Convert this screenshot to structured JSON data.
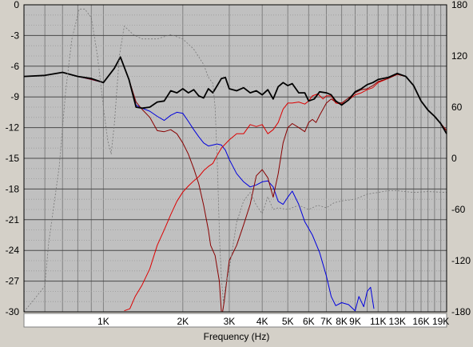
{
  "chart_data": {
    "type": "line",
    "xlabel": "Frequency (Hz)",
    "x_scale": "log",
    "xlim": [
      500,
      20000
    ],
    "ylim": [
      -30,
      0
    ],
    "y2lim": [
      -180,
      180
    ],
    "grid": true,
    "x_tick_labels": [
      {
        "x": 1000,
        "label": "1K"
      },
      {
        "x": 2000,
        "label": "2K"
      },
      {
        "x": 3000,
        "label": "3K"
      },
      {
        "x": 4000,
        "label": "4K"
      },
      {
        "x": 5000,
        "label": "5K"
      },
      {
        "x": 6000,
        "label": "6K"
      },
      {
        "x": 7000,
        "label": "7K"
      },
      {
        "x": 8000,
        "label": "8K"
      },
      {
        "x": 9000,
        "label": "9K"
      },
      {
        "x": 11000,
        "label": "11K"
      },
      {
        "x": 13000,
        "label": "13K"
      },
      {
        "x": 16000,
        "label": "16K"
      },
      {
        "x": 19000,
        "label": "19K"
      }
    ],
    "y_ticks": [
      0,
      -3,
      -6,
      -9,
      -12,
      -15,
      -18,
      -21,
      -24,
      -27,
      -30
    ],
    "y2_ticks": [
      180,
      120,
      60,
      0,
      -60,
      -120,
      -180
    ],
    "series": [
      {
        "color": "#0000dd",
        "width": 1,
        "axis": "left",
        "points": [
          [
            500,
            -7.0
          ],
          [
            600,
            -6.9
          ],
          [
            700,
            -6.6
          ],
          [
            800,
            -7.0
          ],
          [
            900,
            -7.3
          ],
          [
            1000,
            -7.6
          ],
          [
            1100,
            -6.2
          ],
          [
            1160,
            -5.1
          ],
          [
            1250,
            -7.3
          ],
          [
            1330,
            -9.8
          ],
          [
            1400,
            -10.1
          ],
          [
            1500,
            -10.4
          ],
          [
            1600,
            -10.9
          ],
          [
            1700,
            -11.3
          ],
          [
            1800,
            -10.8
          ],
          [
            1900,
            -10.5
          ],
          [
            2000,
            -10.6
          ],
          [
            2100,
            -11.4
          ],
          [
            2200,
            -12.2
          ],
          [
            2300,
            -12.9
          ],
          [
            2400,
            -13.5
          ],
          [
            2500,
            -13.8
          ],
          [
            2600,
            -13.7
          ],
          [
            2700,
            -13.6
          ],
          [
            2800,
            -13.7
          ],
          [
            2900,
            -14.2
          ],
          [
            3000,
            -15.1
          ],
          [
            3200,
            -16.5
          ],
          [
            3400,
            -17.3
          ],
          [
            3600,
            -17.8
          ],
          [
            3800,
            -17.6
          ],
          [
            4000,
            -17.3
          ],
          [
            4200,
            -17.2
          ],
          [
            4400,
            -17.8
          ],
          [
            4600,
            -19.2
          ],
          [
            4800,
            -19.5
          ],
          [
            5000,
            -18.8
          ],
          [
            5200,
            -18.2
          ],
          [
            5500,
            -19.5
          ],
          [
            5800,
            -21.2
          ],
          [
            6200,
            -22.5
          ],
          [
            6600,
            -24.2
          ],
          [
            7000,
            -26.5
          ],
          [
            7300,
            -28.5
          ],
          [
            7600,
            -29.4
          ],
          [
            8000,
            -29.1
          ],
          [
            8500,
            -29.3
          ],
          [
            9000,
            -29.9
          ],
          [
            9300,
            -28.5
          ],
          [
            9700,
            -29.5
          ],
          [
            10000,
            -28.0
          ],
          [
            10300,
            -27.6
          ],
          [
            10600,
            -29.7
          ]
        ]
      },
      {
        "color": "#dd0000",
        "width": 1,
        "axis": "left",
        "points": [
          [
            1200,
            -29.9
          ],
          [
            1260,
            -29.7
          ],
          [
            1320,
            -28.5
          ],
          [
            1400,
            -27.4
          ],
          [
            1500,
            -25.8
          ],
          [
            1600,
            -23.5
          ],
          [
            1700,
            -22.0
          ],
          [
            1800,
            -20.5
          ],
          [
            1900,
            -19.2
          ],
          [
            2000,
            -18.3
          ],
          [
            2100,
            -17.7
          ],
          [
            2200,
            -17.2
          ],
          [
            2300,
            -16.8
          ],
          [
            2400,
            -16.2
          ],
          [
            2500,
            -15.8
          ],
          [
            2600,
            -15.5
          ],
          [
            2700,
            -14.7
          ],
          [
            2800,
            -14.0
          ],
          [
            3000,
            -13.2
          ],
          [
            3200,
            -12.6
          ],
          [
            3400,
            -12.6
          ],
          [
            3600,
            -11.7
          ],
          [
            3800,
            -11.9
          ],
          [
            4000,
            -11.7
          ],
          [
            4200,
            -12.6
          ],
          [
            4400,
            -12.2
          ],
          [
            4600,
            -11.5
          ],
          [
            4800,
            -10.2
          ],
          [
            5000,
            -9.6
          ],
          [
            5200,
            -9.6
          ],
          [
            5500,
            -9.5
          ],
          [
            5800,
            -9.7
          ],
          [
            6000,
            -9.4
          ],
          [
            6200,
            -8.9
          ],
          [
            6500,
            -8.7
          ],
          [
            6800,
            -9.2
          ],
          [
            7000,
            -8.9
          ],
          [
            7300,
            -8.9
          ],
          [
            7600,
            -9.6
          ],
          [
            8000,
            -9.7
          ],
          [
            8500,
            -9.3
          ],
          [
            9000,
            -8.8
          ],
          [
            9500,
            -8.6
          ],
          [
            10000,
            -8.3
          ],
          [
            10500,
            -8.1
          ],
          [
            11000,
            -7.6
          ],
          [
            12000,
            -7.2
          ],
          [
            13000,
            -6.8
          ],
          [
            14000,
            -7.0
          ],
          [
            15000,
            -7.9
          ],
          [
            16000,
            -9.4
          ],
          [
            17000,
            -10.3
          ],
          [
            18000,
            -10.9
          ],
          [
            19000,
            -11.6
          ],
          [
            20000,
            -12.3
          ]
        ]
      },
      {
        "color": "#880000",
        "width": 1,
        "axis": "left",
        "points": [
          [
            500,
            -7.0
          ],
          [
            600,
            -6.9
          ],
          [
            700,
            -6.6
          ],
          [
            800,
            -7.0
          ],
          [
            900,
            -7.3
          ],
          [
            1000,
            -7.6
          ],
          [
            1100,
            -6.2
          ],
          [
            1160,
            -5.1
          ],
          [
            1250,
            -7.3
          ],
          [
            1330,
            -9.5
          ],
          [
            1400,
            -10.2
          ],
          [
            1500,
            -11.0
          ],
          [
            1600,
            -12.3
          ],
          [
            1700,
            -12.4
          ],
          [
            1800,
            -12.2
          ],
          [
            1900,
            -12.6
          ],
          [
            2000,
            -13.5
          ],
          [
            2100,
            -14.6
          ],
          [
            2200,
            -16.0
          ],
          [
            2300,
            -17.5
          ],
          [
            2400,
            -19.6
          ],
          [
            2500,
            -22.0
          ],
          [
            2550,
            -23.5
          ],
          [
            2650,
            -24.5
          ],
          [
            2750,
            -27.0
          ],
          [
            2800,
            -30.0
          ],
          [
            2830,
            -30.0
          ],
          [
            2870,
            -29.0
          ],
          [
            2950,
            -26.5
          ],
          [
            3000,
            -25.0
          ],
          [
            3200,
            -23.5
          ],
          [
            3400,
            -21.5
          ],
          [
            3600,
            -19.5
          ],
          [
            3800,
            -16.7
          ],
          [
            4000,
            -16.1
          ],
          [
            4200,
            -16.9
          ],
          [
            4400,
            -18.8
          ],
          [
            4600,
            -16.5
          ],
          [
            4800,
            -13.5
          ],
          [
            5000,
            -12.0
          ],
          [
            5200,
            -11.6
          ],
          [
            5500,
            -12.0
          ],
          [
            5800,
            -12.4
          ],
          [
            6000,
            -11.5
          ],
          [
            6200,
            -11.2
          ],
          [
            6400,
            -11.5
          ],
          [
            6600,
            -10.8
          ],
          [
            7000,
            -9.6
          ],
          [
            7300,
            -9.2
          ],
          [
            7600,
            -9.5
          ],
          [
            8000,
            -9.6
          ],
          [
            8500,
            -9.1
          ],
          [
            9000,
            -8.6
          ],
          [
            9500,
            -8.3
          ],
          [
            10000,
            -8.2
          ],
          [
            10500,
            -7.9
          ],
          [
            11000,
            -7.5
          ],
          [
            12000,
            -7.2
          ],
          [
            13000,
            -6.8
          ],
          [
            14000,
            -7.0
          ],
          [
            15000,
            -7.9
          ],
          [
            16000,
            -9.4
          ],
          [
            17000,
            -10.3
          ],
          [
            18000,
            -10.9
          ],
          [
            19000,
            -11.6
          ],
          [
            20000,
            -12.3
          ]
        ]
      },
      {
        "color": "#000000",
        "width": 1.8,
        "axis": "left",
        "points": [
          [
            500,
            -7.0
          ],
          [
            600,
            -6.9
          ],
          [
            700,
            -6.6
          ],
          [
            800,
            -7.0
          ],
          [
            900,
            -7.2
          ],
          [
            1000,
            -7.6
          ],
          [
            1100,
            -6.2
          ],
          [
            1160,
            -5.1
          ],
          [
            1250,
            -7.3
          ],
          [
            1330,
            -10.0
          ],
          [
            1400,
            -10.1
          ],
          [
            1500,
            -10.0
          ],
          [
            1600,
            -9.5
          ],
          [
            1700,
            -9.4
          ],
          [
            1800,
            -8.4
          ],
          [
            1900,
            -8.6
          ],
          [
            2000,
            -8.2
          ],
          [
            2100,
            -8.6
          ],
          [
            2200,
            -8.3
          ],
          [
            2300,
            -8.9
          ],
          [
            2400,
            -9.1
          ],
          [
            2500,
            -8.2
          ],
          [
            2600,
            -8.6
          ],
          [
            2700,
            -7.9
          ],
          [
            2800,
            -7.2
          ],
          [
            2900,
            -7.1
          ],
          [
            3000,
            -8.2
          ],
          [
            3200,
            -8.4
          ],
          [
            3400,
            -8.1
          ],
          [
            3600,
            -8.6
          ],
          [
            3800,
            -8.4
          ],
          [
            4000,
            -8.8
          ],
          [
            4200,
            -8.3
          ],
          [
            4400,
            -9.2
          ],
          [
            4600,
            -8.0
          ],
          [
            4800,
            -7.6
          ],
          [
            5000,
            -7.9
          ],
          [
            5200,
            -7.7
          ],
          [
            5500,
            -8.6
          ],
          [
            5800,
            -8.6
          ],
          [
            6000,
            -9.4
          ],
          [
            6300,
            -9.2
          ],
          [
            6600,
            -8.5
          ],
          [
            7000,
            -8.6
          ],
          [
            7300,
            -8.8
          ],
          [
            7600,
            -9.4
          ],
          [
            8000,
            -9.8
          ],
          [
            8500,
            -9.3
          ],
          [
            9000,
            -8.5
          ],
          [
            9500,
            -8.2
          ],
          [
            10000,
            -7.8
          ],
          [
            10500,
            -7.6
          ],
          [
            11000,
            -7.3
          ],
          [
            12000,
            -7.1
          ],
          [
            13000,
            -6.7
          ],
          [
            14000,
            -7.0
          ],
          [
            15000,
            -7.9
          ],
          [
            16000,
            -9.4
          ],
          [
            17000,
            -10.3
          ],
          [
            18000,
            -10.9
          ],
          [
            19000,
            -11.6
          ],
          [
            20000,
            -12.6
          ]
        ]
      },
      {
        "color": "#777777",
        "width": 0.8,
        "dash": "2,2",
        "axis": "right",
        "points": [
          [
            500,
            -180
          ],
          [
            600,
            -150
          ],
          [
            620,
            -100
          ],
          [
            680,
            -10
          ],
          [
            720,
            80
          ],
          [
            760,
            140
          ],
          [
            810,
            175
          ],
          [
            850,
            175
          ],
          [
            900,
            165
          ],
          [
            950,
            120
          ],
          [
            1000,
            60
          ],
          [
            1040,
            20
          ],
          [
            1070,
            5
          ],
          [
            1100,
            40
          ],
          [
            1150,
            120
          ],
          [
            1200,
            155
          ],
          [
            1300,
            145
          ],
          [
            1400,
            140
          ],
          [
            1600,
            140
          ],
          [
            1800,
            145
          ],
          [
            2000,
            140
          ],
          [
            2200,
            128
          ],
          [
            2400,
            110
          ],
          [
            2500,
            95
          ],
          [
            2600,
            88
          ],
          [
            2650,
            60
          ],
          [
            2700,
            0
          ],
          [
            2730,
            -50
          ],
          [
            2760,
            -100
          ],
          [
            2800,
            -140
          ],
          [
            2850,
            -170
          ],
          [
            2900,
            -150
          ],
          [
            3000,
            -130
          ],
          [
            3200,
            -75
          ],
          [
            3400,
            -50
          ],
          [
            3600,
            -40
          ],
          [
            3800,
            -55
          ],
          [
            4000,
            -65
          ],
          [
            4200,
            -45
          ],
          [
            4400,
            -60
          ],
          [
            4600,
            -58
          ],
          [
            5000,
            -60
          ],
          [
            5500,
            -55
          ],
          [
            6000,
            -60
          ],
          [
            6500,
            -55
          ],
          [
            7000,
            -58
          ],
          [
            7500,
            -52
          ],
          [
            8000,
            -50
          ],
          [
            9000,
            -48
          ],
          [
            10000,
            -42
          ],
          [
            11000,
            -40
          ],
          [
            12000,
            -38
          ],
          [
            13000,
            -38
          ],
          [
            15000,
            -40
          ],
          [
            17000,
            -39
          ],
          [
            20000,
            -40
          ]
        ]
      }
    ]
  }
}
